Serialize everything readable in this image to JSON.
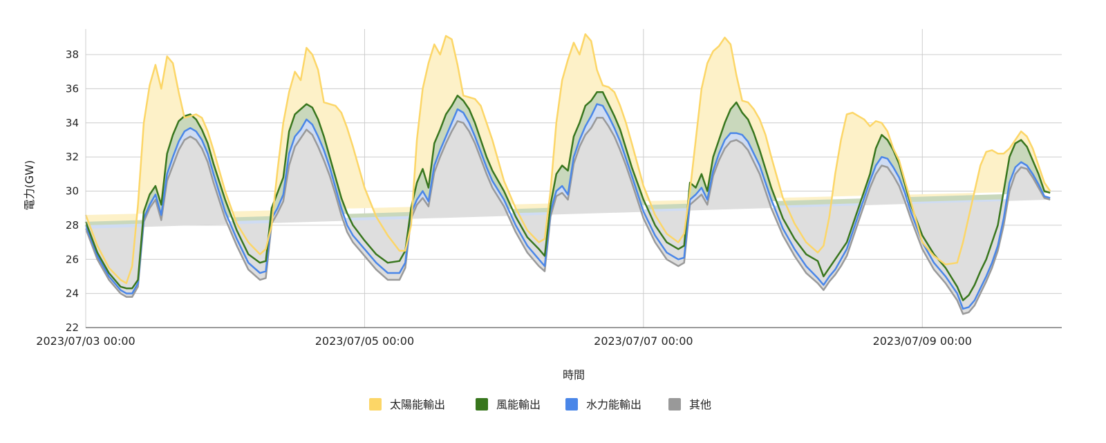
{
  "chart_data": {
    "type": "area",
    "stacked": true,
    "xlabel": "時間",
    "ylabel": "電力(GW)",
    "ylim": [
      22,
      39.5
    ],
    "y_ticks": [
      22,
      24,
      26,
      28,
      30,
      32,
      34,
      36,
      38
    ],
    "x_range_hours": [
      0,
      168
    ],
    "x_ticks": [
      {
        "hour": 0,
        "label": "2023/07/03 00:00"
      },
      {
        "hour": 48,
        "label": "2023/07/05 00:00"
      },
      {
        "hour": 96,
        "label": "2023/07/07 00:00"
      },
      {
        "hour": 144,
        "label": "2023/07/09 00:00"
      }
    ],
    "grid": true,
    "legend_position": "bottom",
    "series": [
      {
        "name": "太陽能輸出",
        "color": "#fcd667",
        "fill": "#fdf1c8"
      },
      {
        "name": "風能輸出",
        "color": "#38761d",
        "fill": "#c9d8bc"
      },
      {
        "name": "水力能輸出",
        "color": "#4a86e8",
        "fill": "#cfdcf3"
      },
      {
        "name": "其他",
        "color": "#999999",
        "fill": "#dedede"
      }
    ],
    "hours": [
      0,
      2,
      4,
      6,
      7,
      8,
      9,
      10,
      11,
      12,
      13,
      14,
      15,
      16,
      17,
      18,
      19,
      20,
      21,
      22,
      24,
      26,
      28,
      30,
      31,
      32,
      33,
      34,
      35,
      36,
      37,
      38,
      39,
      40,
      41,
      42,
      43,
      44,
      45,
      46,
      48,
      50,
      52,
      54,
      55,
      56,
      57,
      58,
      59,
      60,
      61,
      62,
      63,
      64,
      65,
      66,
      67,
      68,
      69,
      70,
      72,
      74,
      76,
      78,
      79,
      80,
      81,
      82,
      83,
      84,
      85,
      86,
      87,
      88,
      89,
      90,
      91,
      92,
      93,
      94,
      96,
      98,
      100,
      102,
      103,
      104,
      105,
      106,
      107,
      108,
      109,
      110,
      111,
      112,
      113,
      114,
      115,
      116,
      117,
      118,
      120,
      122,
      124,
      126,
      127,
      128,
      129,
      130,
      131,
      132,
      133,
      134,
      135,
      136,
      137,
      138,
      139,
      140,
      141,
      142,
      144,
      146,
      148,
      150,
      151,
      152,
      153,
      154,
      155,
      156,
      157,
      158,
      159,
      160,
      161,
      162,
      163,
      164,
      165,
      166,
      167,
      168
    ],
    "total": [
      28.6,
      26.8,
      25.5,
      24.8,
      24.6,
      25.6,
      29.2,
      34.0,
      36.2,
      37.4,
      36.0,
      37.9,
      37.5,
      35.8,
      34.3,
      34.4,
      34.5,
      34.3,
      33.5,
      32.4,
      30.0,
      28.1,
      27.0,
      26.3,
      26.6,
      28.0,
      31.2,
      34.0,
      35.8,
      37.0,
      36.5,
      38.4,
      38.0,
      37.1,
      35.2,
      35.1,
      35.0,
      34.6,
      33.7,
      32.6,
      30.2,
      28.5,
      27.4,
      26.5,
      26.5,
      28.0,
      33.0,
      36.0,
      37.5,
      38.6,
      38.0,
      39.1,
      38.9,
      37.4,
      35.6,
      35.5,
      35.4,
      35.0,
      34.0,
      33.0,
      30.6,
      29.0,
      27.7,
      27.0,
      27.2,
      30.0,
      34.0,
      36.5,
      37.7,
      38.7,
      38.0,
      39.2,
      38.8,
      37.1,
      36.2,
      36.1,
      35.8,
      35.0,
      34.0,
      32.8,
      30.3,
      28.6,
      27.5,
      27.0,
      27.5,
      30.0,
      33.0,
      36.0,
      37.5,
      38.2,
      38.5,
      39.0,
      38.6,
      36.8,
      35.3,
      35.2,
      34.8,
      34.2,
      33.3,
      32.0,
      29.6,
      28.1,
      27.0,
      26.4,
      26.8,
      28.5,
      31.0,
      33.0,
      34.5,
      34.6,
      34.4,
      34.2,
      33.8,
      34.1,
      34.0,
      33.5,
      32.5,
      31.8,
      30.6,
      29.4,
      27.0,
      26.2,
      25.7,
      25.8,
      27.0,
      28.5,
      30.0,
      31.5,
      32.3,
      32.4,
      32.2,
      32.2,
      32.5,
      33.0,
      33.5,
      33.2,
      32.5,
      31.5,
      30.5,
      30.0
    ],
    "wind": [
      28.2,
      26.4,
      25.2,
      24.4,
      24.3,
      24.3,
      24.8,
      28.8,
      29.8,
      30.3,
      29.2,
      32.2,
      33.3,
      34.1,
      34.4,
      34.5,
      34.2,
      33.6,
      32.8,
      31.6,
      29.5,
      27.7,
      26.3,
      25.8,
      25.9,
      29.0,
      29.9,
      30.8,
      33.5,
      34.5,
      34.8,
      35.1,
      34.9,
      34.2,
      33.2,
      32.0,
      30.8,
      29.6,
      28.7,
      28.0,
      27.1,
      26.3,
      25.8,
      25.9,
      26.5,
      29.0,
      30.5,
      31.3,
      30.2,
      32.8,
      33.6,
      34.5,
      35.0,
      35.6,
      35.3,
      34.8,
      34.0,
      33.0,
      32.0,
      31.2,
      30.0,
      28.5,
      27.3,
      26.6,
      26.2,
      29.2,
      31.0,
      31.5,
      31.2,
      33.2,
      34.0,
      35.0,
      35.3,
      35.8,
      35.8,
      35.1,
      34.4,
      33.6,
      32.5,
      31.4,
      29.5,
      28.0,
      27.0,
      26.6,
      26.8,
      30.5,
      30.2,
      31.0,
      30.0,
      32.0,
      33.0,
      34.0,
      34.8,
      35.2,
      34.6,
      34.2,
      33.4,
      32.4,
      31.3,
      30.2,
      28.4,
      27.2,
      26.3,
      25.9,
      25.0,
      25.5,
      26.0,
      26.5,
      27.0,
      28.0,
      29.0,
      30.0,
      31.0,
      32.5,
      33.3,
      33.0,
      32.4,
      31.6,
      30.4,
      29.2,
      27.4,
      26.3,
      25.5,
      24.4,
      23.6,
      23.9,
      24.5,
      25.3,
      26.0,
      27.0,
      28.0,
      30.0,
      32.0,
      32.8,
      33.0,
      32.6,
      31.8,
      31.0,
      30.0,
      29.9
    ],
    "hydro": [
      28.0,
      26.2,
      25.0,
      24.2,
      24.0,
      24.0,
      24.6,
      28.4,
      29.2,
      29.8,
      28.6,
      31.0,
      32.0,
      32.9,
      33.5,
      33.7,
      33.5,
      33.0,
      32.2,
      31.0,
      28.8,
      27.2,
      25.8,
      25.2,
      25.3,
      28.4,
      29.0,
      29.8,
      32.2,
      33.2,
      33.6,
      34.2,
      33.9,
      33.2,
      32.4,
      31.4,
      30.2,
      29.0,
      28.0,
      27.4,
      26.6,
      25.8,
      25.2,
      25.2,
      25.8,
      28.7,
      29.5,
      30.0,
      29.4,
      31.5,
      32.4,
      33.2,
      34.0,
      34.8,
      34.6,
      34.0,
      33.2,
      32.3,
      31.4,
      30.6,
      29.5,
      28.0,
      26.8,
      26.0,
      25.6,
      28.8,
      30.0,
      30.3,
      29.8,
      32.0,
      33.0,
      33.8,
      34.4,
      35.1,
      35.0,
      34.4,
      33.7,
      32.9,
      31.9,
      30.9,
      28.8,
      27.4,
      26.4,
      26.0,
      26.1,
      29.5,
      29.8,
      30.2,
      29.5,
      31.2,
      32.2,
      33.0,
      33.4,
      33.4,
      33.3,
      32.9,
      32.2,
      31.5,
      30.5,
      29.5,
      27.8,
      26.6,
      25.6,
      24.9,
      24.5,
      25.0,
      25.4,
      26.0,
      26.6,
      27.6,
      28.6,
      29.6,
      30.6,
      31.5,
      32.0,
      31.9,
      31.4,
      30.8,
      29.9,
      28.8,
      27.0,
      25.8,
      25.0,
      24.0,
      23.1,
      23.2,
      23.6,
      24.3,
      25.0,
      25.8,
      26.8,
      28.4,
      30.5,
      31.4,
      31.7,
      31.5,
      31.0,
      30.4,
      29.7,
      29.6
    ],
    "other": [
      27.8,
      26.0,
      24.8,
      24.0,
      23.8,
      23.8,
      24.4,
      28.2,
      29.0,
      29.5,
      28.3,
      30.6,
      31.5,
      32.4,
      33.0,
      33.2,
      33.0,
      32.5,
      31.7,
      30.5,
      28.4,
      26.8,
      25.4,
      24.8,
      24.9,
      28.1,
      28.7,
      29.4,
      31.5,
      32.6,
      33.1,
      33.6,
      33.3,
      32.6,
      31.8,
      30.9,
      29.8,
      28.6,
      27.6,
      27.0,
      26.2,
      25.4,
      24.8,
      24.8,
      25.5,
      28.4,
      29.2,
      29.6,
      29.1,
      31.1,
      32.0,
      32.8,
      33.5,
      34.1,
      34.0,
      33.5,
      32.8,
      31.9,
      31.0,
      30.2,
      29.1,
      27.6,
      26.4,
      25.6,
      25.3,
      28.5,
      29.7,
      29.9,
      29.5,
      31.6,
      32.6,
      33.3,
      33.7,
      34.3,
      34.3,
      33.8,
      33.2,
      32.4,
      31.5,
      30.5,
      28.4,
      27.0,
      26.0,
      25.6,
      25.8,
      29.2,
      29.5,
      29.8,
      29.2,
      30.9,
      31.8,
      32.5,
      32.9,
      33.0,
      32.8,
      32.4,
      31.7,
      31.0,
      30.0,
      29.0,
      27.4,
      26.2,
      25.2,
      24.6,
      24.2,
      24.7,
      25.1,
      25.6,
      26.2,
      27.2,
      28.2,
      29.2,
      30.2,
      31.0,
      31.5,
      31.4,
      30.9,
      30.3,
      29.4,
      28.4,
      26.6,
      25.4,
      24.6,
      23.6,
      22.8,
      22.9,
      23.3,
      24.0,
      24.7,
      25.5,
      26.5,
      28.0,
      30.0,
      31.0,
      31.4,
      31.3,
      30.8,
      30.2,
      29.6,
      29.5
    ]
  }
}
